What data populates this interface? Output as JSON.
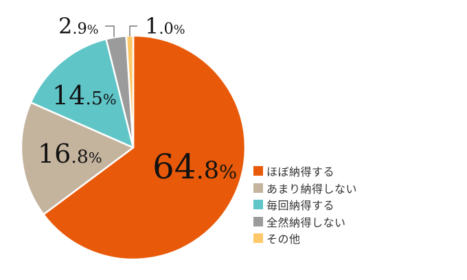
{
  "chart_data": {
    "type": "pie",
    "title": "",
    "categories": [
      "ほぼ納得する",
      "あまり納得しない",
      "毎回納得する",
      "全然納得しない",
      "その他"
    ],
    "values": [
      64.8,
      16.8,
      14.5,
      2.9,
      1.0
    ],
    "colors": [
      "#E85A0A",
      "#C4B49E",
      "#5FC5C7",
      "#9B9B9B",
      "#FFC96B"
    ],
    "start_angle_deg": 0,
    "direction": "clockwise",
    "legend_position": "right-bottom",
    "labels": [
      {
        "int": "64",
        "dec": ".8",
        "pct": "%"
      },
      {
        "int": "16",
        "dec": ".8",
        "pct": "%"
      },
      {
        "int": "14",
        "dec": ".5",
        "pct": "%"
      },
      {
        "int": "2",
        "dec": ".9",
        "pct": "%"
      },
      {
        "int": "1",
        "dec": ".0",
        "pct": "%"
      }
    ]
  },
  "legend": {
    "items": [
      {
        "label": "ほぼ納得する",
        "color": "#E85A0A"
      },
      {
        "label": "あまり納得しない",
        "color": "#C4B49E"
      },
      {
        "label": "毎回納得する",
        "color": "#5FC5C7"
      },
      {
        "label": "全然納得しない",
        "color": "#9B9B9B"
      },
      {
        "label": "その他",
        "color": "#FFC96B"
      }
    ]
  }
}
